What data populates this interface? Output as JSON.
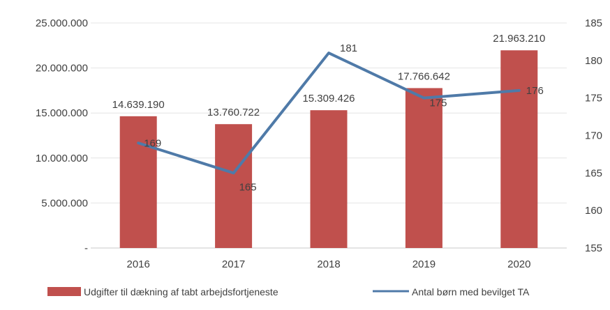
{
  "chart_data": {
    "type": "bar",
    "categories": [
      "2016",
      "2017",
      "2018",
      "2019",
      "2020"
    ],
    "series": [
      {
        "name": "Udgifter til dækning af tabt arbejdsfortjeneste",
        "type": "bar",
        "axis": "left",
        "color": "#c0504d",
        "values": [
          14639190,
          13760722,
          15309426,
          17766642,
          21963210
        ],
        "labels": [
          "14.639.190",
          "13.760.722",
          "15.309.426",
          "17.766.642",
          "21.963.210"
        ]
      },
      {
        "name": "Antal børn med bevilget TA",
        "type": "line",
        "axis": "right",
        "color": "#4f7aa8",
        "values": [
          169,
          165,
          181,
          175,
          176
        ],
        "labels": [
          "169",
          "165",
          "181",
          "175",
          "176"
        ]
      }
    ],
    "y_left": {
      "ylim": [
        0,
        25000000
      ],
      "ticks": [
        "-",
        "5.000.000",
        "10.000.000",
        "15.000.000",
        "20.000.000",
        "25.000.000"
      ]
    },
    "y_right": {
      "ylim": [
        155,
        185
      ],
      "ticks": [
        "155",
        "160",
        "165",
        "170",
        "175",
        "180",
        "185"
      ]
    },
    "title": "",
    "xlabel": "",
    "grid": true,
    "legend_position": "bottom"
  }
}
